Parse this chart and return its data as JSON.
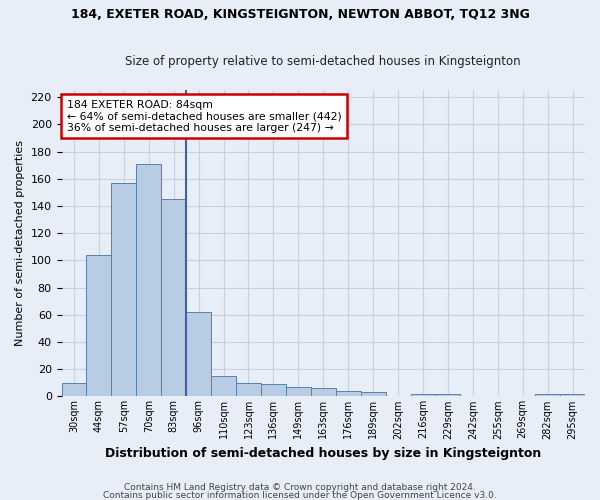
{
  "title": "184, EXETER ROAD, KINGSTEIGNTON, NEWTON ABBOT, TQ12 3NG",
  "subtitle": "Size of property relative to semi-detached houses in Kingsteignton",
  "xlabel": "Distribution of semi-detached houses by size in Kingsteignton",
  "ylabel": "Number of semi-detached properties",
  "categories": [
    "30sqm",
    "44sqm",
    "57sqm",
    "70sqm",
    "83sqm",
    "96sqm",
    "110sqm",
    "123sqm",
    "136sqm",
    "149sqm",
    "163sqm",
    "176sqm",
    "189sqm",
    "202sqm",
    "216sqm",
    "229sqm",
    "242sqm",
    "255sqm",
    "269sqm",
    "282sqm",
    "295sqm"
  ],
  "values": [
    10,
    104,
    157,
    171,
    145,
    62,
    15,
    10,
    9,
    7,
    6,
    4,
    3,
    0,
    2,
    2,
    0,
    0,
    0,
    2,
    2
  ],
  "bar_color": "#b8cce4",
  "bar_edge_color": "#5580b0",
  "highlight_color": "#4060a0",
  "annotation_text": "184 EXETER ROAD: 84sqm\n← 64% of semi-detached houses are smaller (442)\n36% of semi-detached houses are larger (247) →",
  "annotation_box_color": "#ffffff",
  "annotation_box_edge": "#cc0000",
  "vline_x": 4.5,
  "ylim": [
    0,
    225
  ],
  "yticks": [
    0,
    20,
    40,
    60,
    80,
    100,
    120,
    140,
    160,
    180,
    200,
    220
  ],
  "footer_line1": "Contains HM Land Registry data © Crown copyright and database right 2024.",
  "footer_line2": "Contains public sector information licensed under the Open Government Licence v3.0.",
  "bg_color": "#e8eef8",
  "plot_bg_color": "#e8eef8",
  "grid_color": "#c8d0e0",
  "title_fontsize": 9,
  "subtitle_fontsize": 8.5
}
